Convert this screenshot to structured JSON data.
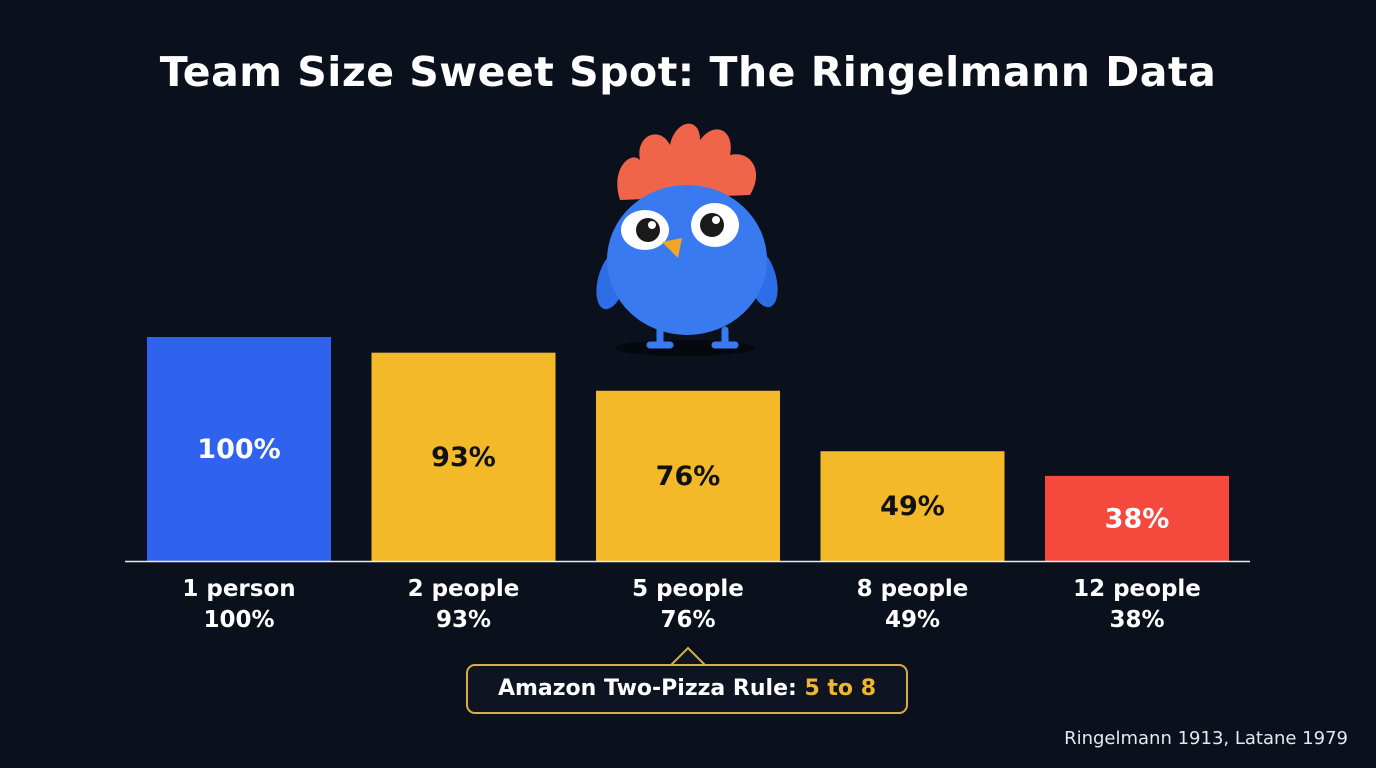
{
  "chart_data": {
    "type": "bar",
    "title": "Team Size Sweet Spot: The Ringelmann Data",
    "categories": [
      "1 person",
      "2 people",
      "5 people",
      "8 people",
      "12 people"
    ],
    "values": [
      100,
      93,
      76,
      49,
      38
    ],
    "bar_labels": [
      "100%",
      "93%",
      "76%",
      "49%",
      "38%"
    ],
    "category_value_labels": [
      "100%",
      "93%",
      "76%",
      "49%",
      "38%"
    ],
    "colors": [
      "#2f63ee",
      "#f3b928",
      "#f3b928",
      "#f3b928",
      "#f5493d"
    ],
    "label_colors": [
      "#ffffff",
      "#111111",
      "#111111",
      "#111111",
      "#ffffff"
    ],
    "ylim": [
      0,
      100
    ],
    "grid": false,
    "xlabel": "",
    "ylabel": ""
  },
  "callout": {
    "text": "Amazon Two-Pizza Rule: ",
    "highlight": "5 to 8",
    "highlight_color": "#f2b52e"
  },
  "source": "Ringelmann 1913, Latane 1979",
  "mascot": "blue-bird-mascot"
}
